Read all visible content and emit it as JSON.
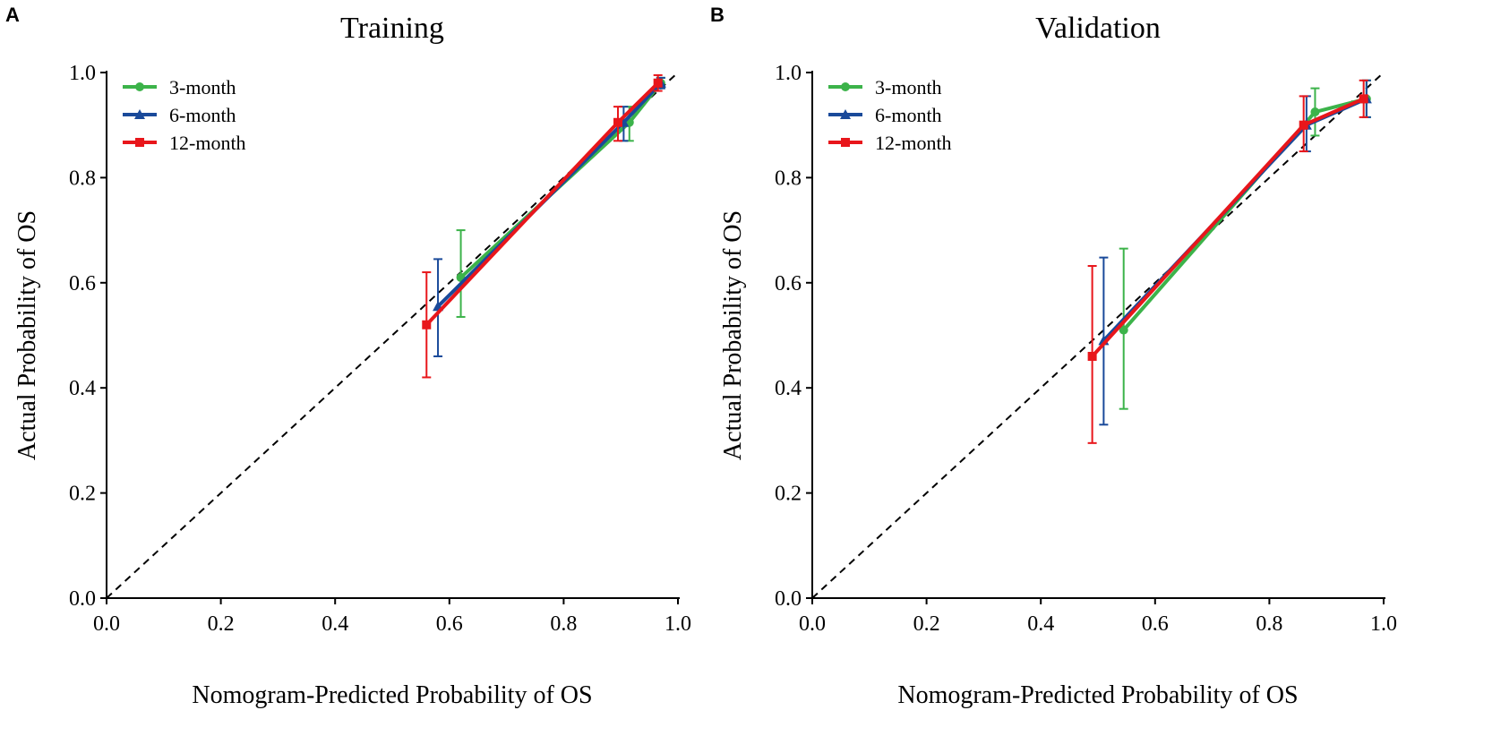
{
  "chart_data": [
    {
      "type": "line",
      "panel": "A",
      "title": "Training",
      "xlabel": "Nomogram-Predicted Probability of  OS",
      "ylabel": "Actual Probability of  OS",
      "xlim": [
        0,
        1.0
      ],
      "ylim": [
        0,
        1.0
      ],
      "xticks": [
        "0.0",
        "0.2",
        "0.4",
        "0.6",
        "0.8",
        "1.0"
      ],
      "yticks": [
        "0.0",
        "0.2",
        "0.4",
        "0.6",
        "0.8",
        "1.0"
      ],
      "reference_line": "diagonal dashed",
      "legend_position": "top-left",
      "series": [
        {
          "name": "3-month",
          "color": "#3cb34a",
          "marker": "circle",
          "x": [
            0.62,
            0.915,
            0.97
          ],
          "y": [
            0.61,
            0.905,
            0.98
          ],
          "err_low": [
            0.535,
            0.87,
            0.97
          ],
          "err_high": [
            0.7,
            0.935,
            0.99
          ]
        },
        {
          "name": "6-month",
          "color": "#1a4a9a",
          "marker": "triangle",
          "x": [
            0.58,
            0.905,
            0.97
          ],
          "y": [
            0.555,
            0.905,
            0.98
          ],
          "err_low": [
            0.46,
            0.87,
            0.97
          ],
          "err_high": [
            0.645,
            0.935,
            0.99
          ]
        },
        {
          "name": "12-month",
          "color": "#e8161b",
          "marker": "square",
          "x": [
            0.56,
            0.895,
            0.965
          ],
          "y": [
            0.52,
            0.905,
            0.98
          ],
          "err_low": [
            0.42,
            0.87,
            0.965
          ],
          "err_high": [
            0.62,
            0.935,
            0.995
          ]
        }
      ]
    },
    {
      "type": "line",
      "panel": "B",
      "title": "Validation",
      "xlabel": "Nomogram-Predicted Probability of  OS",
      "ylabel": "Actual Probability of  OS",
      "xlim": [
        0,
        1.0
      ],
      "ylim": [
        0,
        1.0
      ],
      "xticks": [
        "0.0",
        "0.2",
        "0.4",
        "0.6",
        "0.8",
        "1.0"
      ],
      "yticks": [
        "0.0",
        "0.2",
        "0.4",
        "0.6",
        "0.8",
        "1.0"
      ],
      "reference_line": "diagonal dashed",
      "legend_position": "top-left",
      "series": [
        {
          "name": "3-month",
          "color": "#3cb34a",
          "marker": "circle",
          "x": [
            0.545,
            0.88,
            0.97
          ],
          "y": [
            0.51,
            0.925,
            0.95
          ],
          "err_low": [
            0.36,
            0.88,
            0.915
          ],
          "err_high": [
            0.665,
            0.97,
            0.985
          ]
        },
        {
          "name": "6-month",
          "color": "#1a4a9a",
          "marker": "triangle",
          "x": [
            0.51,
            0.865,
            0.97
          ],
          "y": [
            0.49,
            0.9,
            0.95
          ],
          "err_low": [
            0.33,
            0.85,
            0.915
          ],
          "err_high": [
            0.648,
            0.955,
            0.985
          ]
        },
        {
          "name": "12-month",
          "color": "#e8161b",
          "marker": "square",
          "x": [
            0.49,
            0.86,
            0.965
          ],
          "y": [
            0.46,
            0.9,
            0.95
          ],
          "err_low": [
            0.295,
            0.85,
            0.915
          ],
          "err_high": [
            0.632,
            0.955,
            0.985
          ]
        }
      ]
    }
  ]
}
